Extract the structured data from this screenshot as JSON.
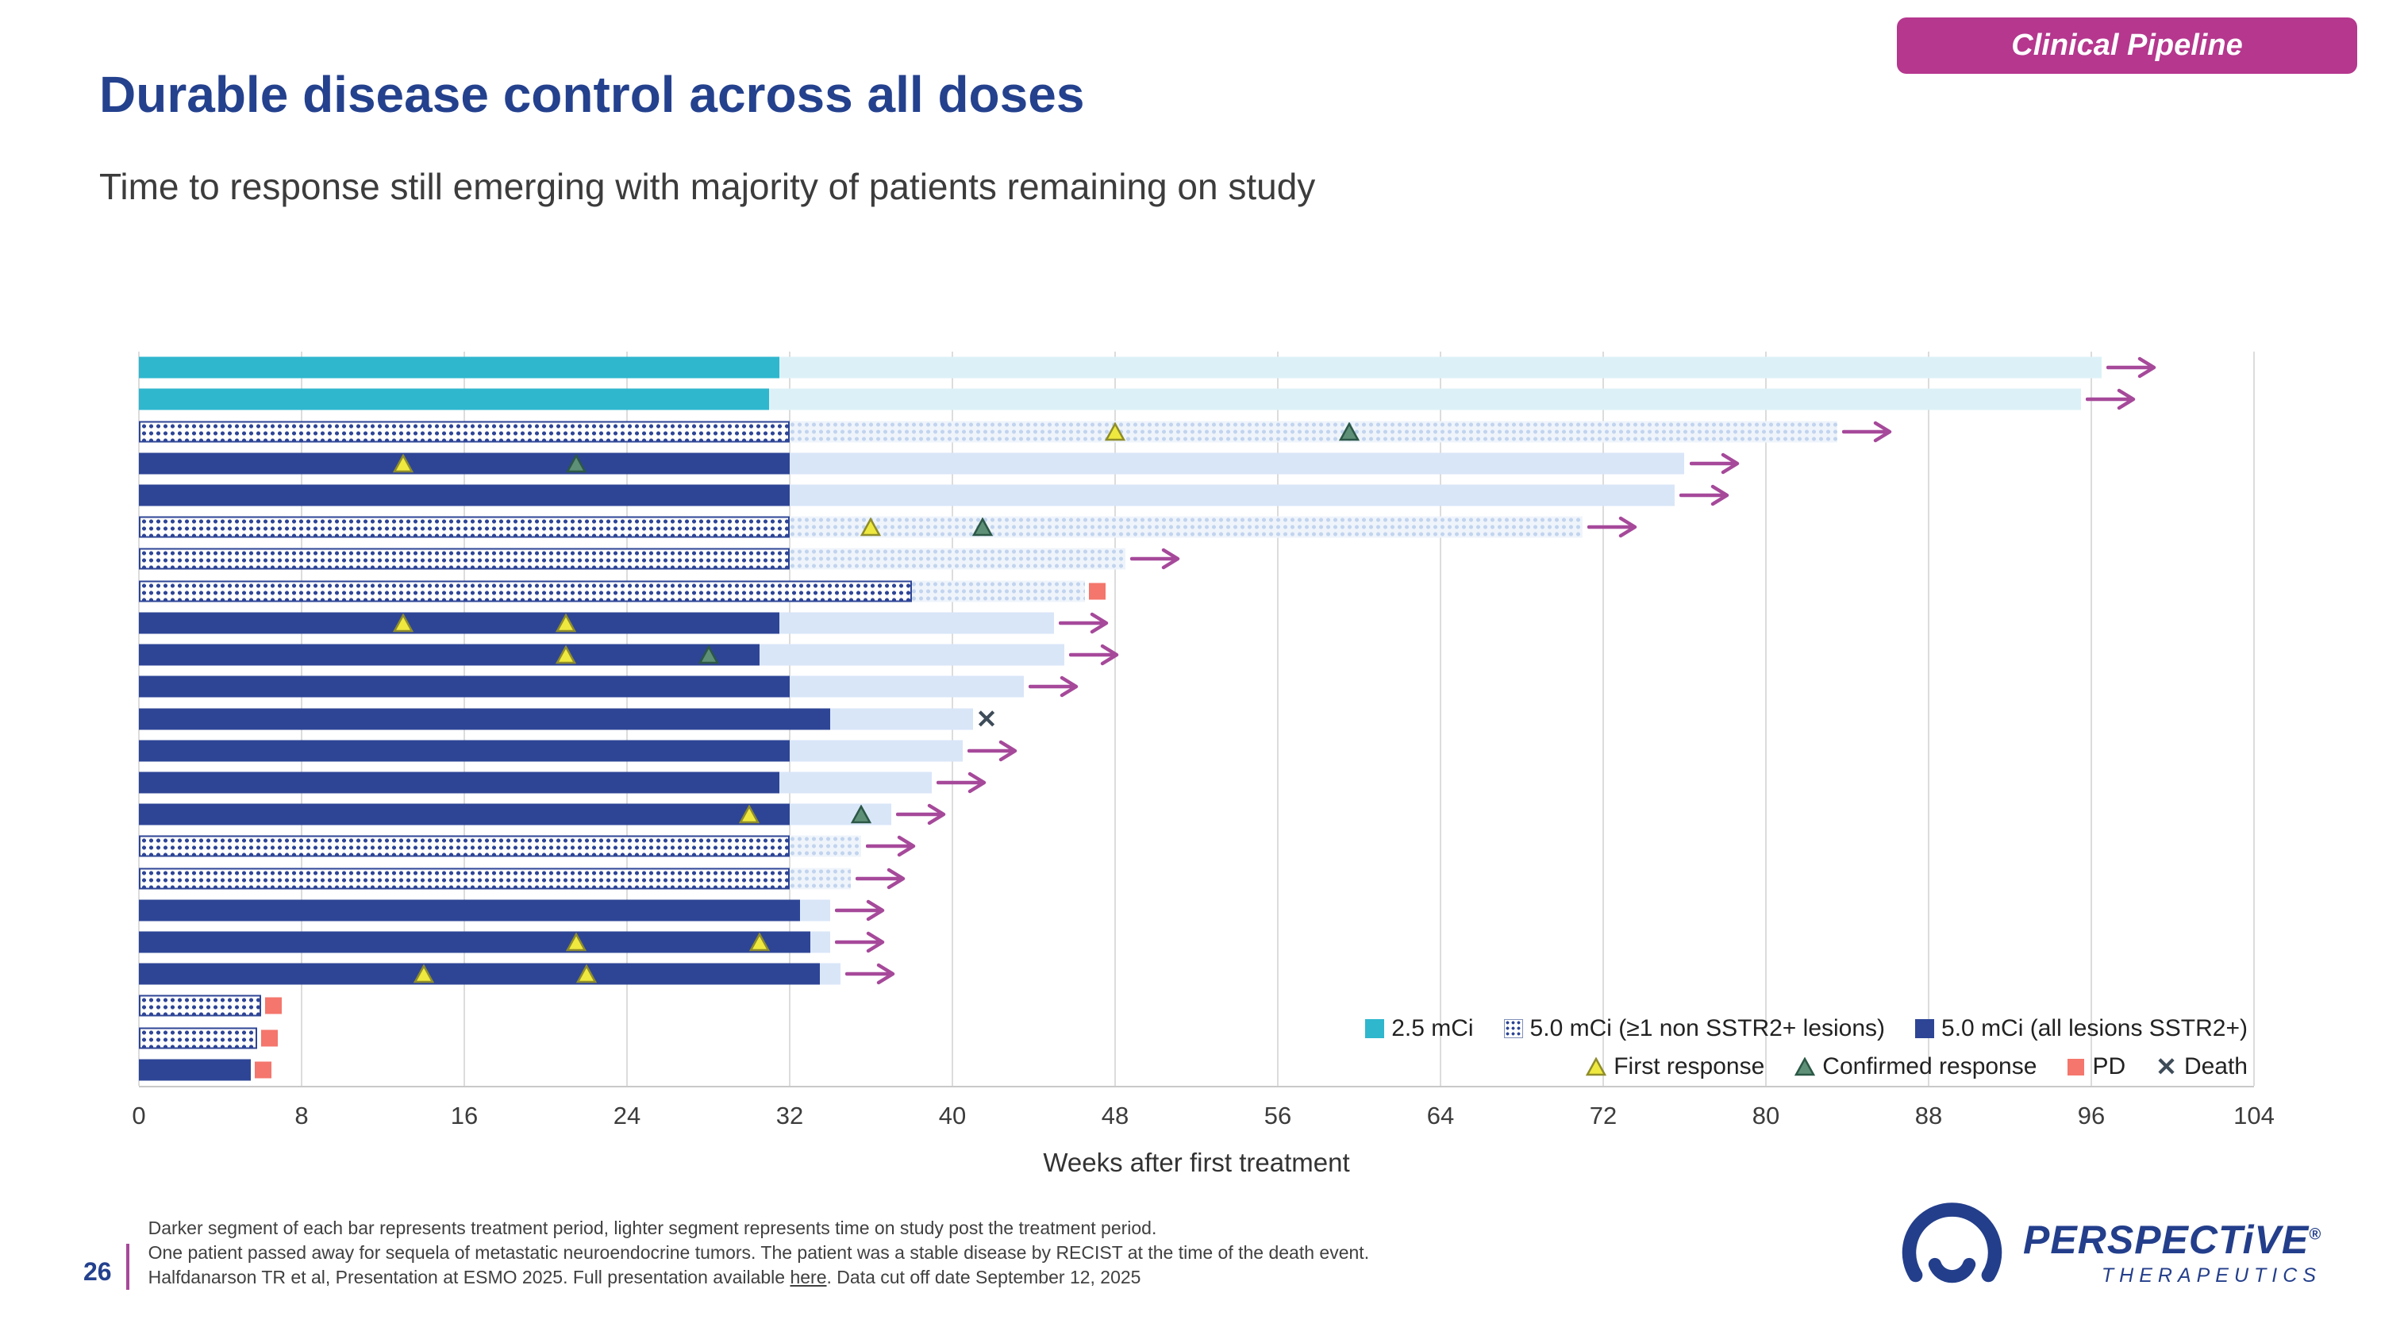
{
  "badge": {
    "label": "Clinical Pipeline"
  },
  "title": "Durable disease control across all doses",
  "subtitle": "Time to response still emerging with majority of patients remaining on study",
  "page_number": "26",
  "footnotes": {
    "line1": "Darker segment of each bar represents treatment period, lighter segment represents time on study post the treatment period.",
    "line2": "One patient passed away for sequela of metastatic neuroendocrine tumors. The patient was a stable disease by RECIST at the time of the death event.",
    "line3_pre": "Halfdanarson TR et al, Presentation at ESMO 2025. Full presentation available ",
    "line3_link": "here",
    "line3_post": ". Data cut off date September 12, 2025"
  },
  "logo": {
    "brand": "PERSPECTiVE",
    "registered": "®",
    "sub": "THERAPEUTICS"
  },
  "legend": {
    "row1": [
      {
        "type": "cyan",
        "label": "2.5 mCi"
      },
      {
        "type": "pattern",
        "label": "5.0 mCi (≥1 non SSTR2+ lesions)"
      },
      {
        "type": "navy",
        "label": "5.0 mCi (all lesions SSTR2+)"
      }
    ],
    "row2": [
      {
        "type": "first",
        "label": "First response"
      },
      {
        "type": "confirmed",
        "label": "Confirmed response"
      },
      {
        "type": "pd",
        "label": "PD"
      },
      {
        "type": "death",
        "label": "Death"
      }
    ]
  },
  "chart_data": {
    "type": "bar",
    "subtype": "swimmer-plot",
    "xlabel": "Weeks after first treatment",
    "xlim": [
      0,
      104
    ],
    "xticks": [
      0,
      8,
      16,
      24,
      32,
      40,
      48,
      56,
      64,
      72,
      80,
      88,
      96,
      104
    ],
    "grid": true,
    "legend_position": "inside-bottom-right",
    "colors": {
      "cyan_treat": "#2FB7CE",
      "cyan_study": "#DCF1F7",
      "navy_treat": "#2E4596",
      "navy_study": "#D9E6F8",
      "pattern_dot": "#2E4596",
      "pattern_study_bg": "#EFF4FB",
      "arrow": "#A6499A",
      "first_fill": "#EFE93F",
      "first_stroke": "#8F8D2B",
      "confirmed_fill": "#5E9077",
      "confirmed_stroke": "#2C5847",
      "pd_fill": "#F4766C",
      "death": "#3E4C59",
      "grid": "#DCDCDC"
    },
    "group_labels": {
      "cyan": "2.5 mCi",
      "pattern": "5.0 mCi (≥1 non SSTR2+ lesions)",
      "navy": "5.0 mCi (all lesions SSTR2+)"
    },
    "patients": [
      {
        "group": "cyan",
        "treatment": 31.5,
        "study": 96.5,
        "ongoing": true,
        "markers": []
      },
      {
        "group": "cyan",
        "treatment": 31.0,
        "study": 95.5,
        "ongoing": true,
        "markers": []
      },
      {
        "group": "pattern",
        "treatment": 32.0,
        "study": 83.5,
        "ongoing": true,
        "markers": [
          {
            "type": "first",
            "week": 48
          },
          {
            "type": "confirmed",
            "week": 59.5
          }
        ]
      },
      {
        "group": "navy",
        "treatment": 32.0,
        "study": 76.0,
        "ongoing": true,
        "markers": [
          {
            "type": "first",
            "week": 13
          },
          {
            "type": "confirmed",
            "week": 21.5
          }
        ]
      },
      {
        "group": "navy",
        "treatment": 32.0,
        "study": 75.5,
        "ongoing": true,
        "markers": []
      },
      {
        "group": "pattern",
        "treatment": 32.0,
        "study": 71.0,
        "ongoing": true,
        "markers": [
          {
            "type": "first",
            "week": 36
          },
          {
            "type": "confirmed",
            "week": 41.5
          }
        ]
      },
      {
        "group": "pattern",
        "treatment": 32.0,
        "study": 48.5,
        "ongoing": true,
        "markers": []
      },
      {
        "group": "pattern",
        "treatment": 38.0,
        "study": 46.5,
        "end": "pd",
        "markers": []
      },
      {
        "group": "navy",
        "treatment": 31.5,
        "study": 45.0,
        "ongoing": true,
        "markers": [
          {
            "type": "first",
            "week": 13
          },
          {
            "type": "first",
            "week": 21
          }
        ]
      },
      {
        "group": "navy",
        "treatment": 30.5,
        "study": 45.5,
        "ongoing": true,
        "markers": [
          {
            "type": "first",
            "week": 21
          },
          {
            "type": "confirmed",
            "week": 28
          }
        ]
      },
      {
        "group": "navy",
        "treatment": 32.0,
        "study": 43.5,
        "ongoing": true,
        "markers": []
      },
      {
        "group": "navy",
        "treatment": 34.0,
        "study": 41.0,
        "end": "death",
        "markers": []
      },
      {
        "group": "navy",
        "treatment": 32.0,
        "study": 40.5,
        "ongoing": true,
        "markers": []
      },
      {
        "group": "navy",
        "treatment": 31.5,
        "study": 39.0,
        "ongoing": true,
        "markers": []
      },
      {
        "group": "navy",
        "treatment": 32.0,
        "study": 37.0,
        "ongoing": true,
        "markers": [
          {
            "type": "first",
            "week": 30
          },
          {
            "type": "confirmed",
            "week": 35.5
          }
        ]
      },
      {
        "group": "pattern",
        "treatment": 32.0,
        "study": 35.5,
        "ongoing": true,
        "markers": []
      },
      {
        "group": "pattern",
        "treatment": 32.0,
        "study": 35.0,
        "ongoing": true,
        "markers": []
      },
      {
        "group": "navy",
        "treatment": 32.5,
        "study": 34.0,
        "ongoing": true,
        "markers": []
      },
      {
        "group": "navy",
        "treatment": 33.0,
        "study": 34.0,
        "ongoing": true,
        "markers": [
          {
            "type": "first",
            "week": 21.5
          },
          {
            "type": "first",
            "week": 30.5
          }
        ]
      },
      {
        "group": "navy",
        "treatment": 33.5,
        "study": 34.5,
        "ongoing": true,
        "markers": [
          {
            "type": "first",
            "week": 14
          },
          {
            "type": "first",
            "week": 22
          }
        ]
      },
      {
        "group": "pattern",
        "treatment": 6.0,
        "study": 6.0,
        "end": "pd",
        "markers": []
      },
      {
        "group": "pattern",
        "treatment": 5.8,
        "study": 5.8,
        "end": "pd",
        "markers": []
      },
      {
        "group": "navy",
        "treatment": 5.5,
        "study": 5.5,
        "end": "pd",
        "markers": []
      }
    ]
  }
}
